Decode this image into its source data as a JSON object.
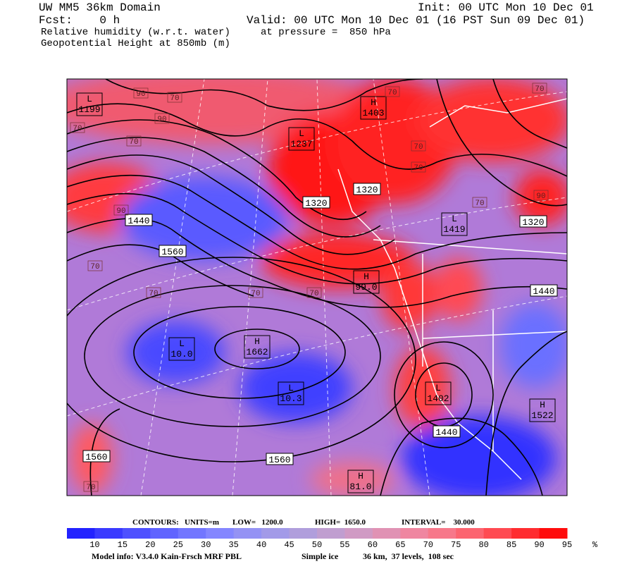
{
  "header": {
    "model": "UW MM5 36km Domain",
    "init": "Init: 00 UTC Mon 10 Dec 01",
    "fcst": "Fcst:    0 h",
    "valid": "Valid: 00 UTC Mon 10 Dec 01 (16 PST Sun 09 Dec 01)",
    "field1": "Relative humidity (w.r.t. water)",
    "pressure": "at pressure =  850 hPa",
    "field2": "Geopotential Height at 850mb (m)"
  },
  "map": {
    "centers": [
      {
        "mark": "L",
        "value": "1199"
      },
      {
        "mark": "H",
        "value": "1403"
      },
      {
        "mark": "L",
        "value": "1237"
      },
      {
        "mark": "L",
        "value": "1419"
      },
      {
        "mark": "H",
        "value": "99.0"
      },
      {
        "mark": "H",
        "value": "1662"
      },
      {
        "mark": "L",
        "value": "10.0"
      },
      {
        "mark": "L",
        "value": "10.3"
      },
      {
        "mark": "L",
        "value": "1402"
      },
      {
        "mark": "H",
        "value": "1522"
      },
      {
        "mark": "H",
        "value": "81.0"
      }
    ],
    "height_labels": [
      "1440",
      "1560",
      "1320",
      "1320",
      "1320",
      "1440",
      "1560",
      "1440",
      "1560"
    ],
    "rh_labels": [
      "70",
      "70",
      "70",
      "70",
      "70",
      "70",
      "70",
      "70",
      "70",
      "70",
      "70",
      "70",
      "70",
      "90",
      "90",
      "90",
      "90"
    ]
  },
  "contours": {
    "title": "CONTOURS:",
    "units": "UNITS=m",
    "low": "LOW=   1200.0",
    "high": "HIGH=  1650.0",
    "interval": "INTERVAL=    30.000"
  },
  "colorbar": {
    "labels": [
      "10",
      "15",
      "20",
      "25",
      "30",
      "35",
      "40",
      "45",
      "50",
      "55",
      "60",
      "65",
      "70",
      "75",
      "80",
      "85",
      "90",
      "95",
      "%"
    ],
    "colors": [
      "#2222ff",
      "#3a3aff",
      "#4e50ff",
      "#6064ff",
      "#7276ff",
      "#8486ff",
      "#9492f4",
      "#a29ae8",
      "#b09edc",
      "#c09ed0",
      "#d09ac4",
      "#e092b4",
      "#ef86a0",
      "#f7788a",
      "#fc6470",
      "#ff4a52",
      "#ff2c30",
      "#ff0c0c"
    ]
  },
  "footer": {
    "info": "Model info: V3.4.0 Kain-Frsch MRF PBL",
    "ice": "Simple ice",
    "grid": "36 km,  37 levels,  108 sec"
  }
}
